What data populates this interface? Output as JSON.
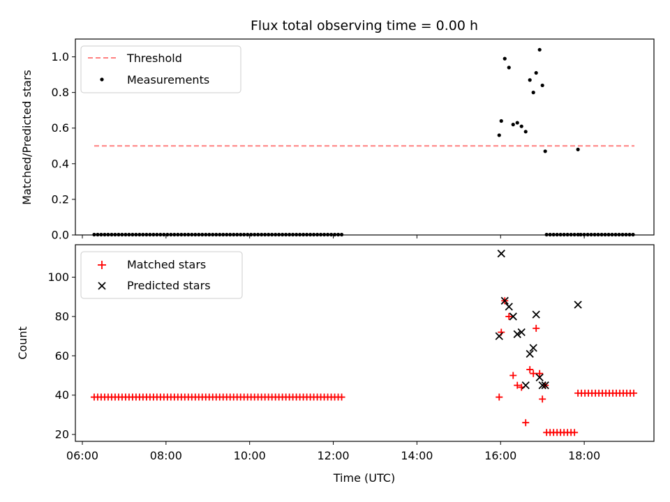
{
  "figure": {
    "title": "Flux total observing time = 0.00 h",
    "xlabel": "Time (UTC)"
  },
  "chart_data": [
    {
      "type": "scatter",
      "ylabel": "Matched/Predicted stars",
      "ylim": [
        0,
        1.1
      ],
      "yticks": [
        0.0,
        0.2,
        0.4,
        0.6,
        0.8,
        1.0
      ],
      "xlim": [
        "05:50",
        "19:40"
      ],
      "legend_position": "upper-left",
      "series": [
        {
          "name": "Threshold",
          "kind": "dashed-line",
          "color": "#ff7f7f",
          "points": [
            [
              "06:17",
              0.5
            ],
            [
              "19:12",
              0.5
            ]
          ]
        },
        {
          "name": "Measurements",
          "kind": "dots",
          "color": "#000000",
          "zero_runs": [
            {
              "start": "06:17",
              "end": "12:12",
              "step_minutes": 5,
              "value": 0
            },
            {
              "start": "17:06",
              "end": "17:51",
              "step_minutes": 5,
              "value": 0
            },
            {
              "start": "17:55",
              "end": "19:12",
              "step_minutes": 5,
              "value": 0
            }
          ],
          "points": [
            [
              "15:58",
              0.56
            ],
            [
              "16:01",
              0.64
            ],
            [
              "16:06",
              0.99
            ],
            [
              "16:12",
              0.94
            ],
            [
              "16:18",
              0.62
            ],
            [
              "16:24",
              0.63
            ],
            [
              "16:30",
              0.61
            ],
            [
              "16:36",
              0.58
            ],
            [
              "16:42",
              0.87
            ],
            [
              "16:47",
              0.8
            ],
            [
              "16:51",
              0.91
            ],
            [
              "16:56",
              1.04
            ],
            [
              "17:00",
              0.84
            ],
            [
              "17:04",
              0.47
            ],
            [
              "17:51",
              0.48
            ]
          ]
        }
      ]
    },
    {
      "type": "scatter",
      "ylabel": "Count",
      "ylim": [
        16.5,
        116.5
      ],
      "yticks": [
        20,
        40,
        60,
        80,
        100
      ],
      "xlim": [
        "05:50",
        "19:40"
      ],
      "xticks": [
        "06:00",
        "08:00",
        "10:00",
        "12:00",
        "14:00",
        "16:00",
        "18:00"
      ],
      "legend_position": "upper-left",
      "series": [
        {
          "name": "Matched stars",
          "marker": "plus",
          "color": "#ff0000",
          "runs": [
            {
              "start": "06:17",
              "end": "12:12",
              "step_minutes": 5,
              "value": 39
            },
            {
              "start": "17:06",
              "end": "17:46",
              "step_minutes": 5,
              "value": 21
            },
            {
              "start": "17:51",
              "end": "19:12",
              "step_minutes": 5,
              "value": 41
            }
          ],
          "points": [
            [
              "15:58",
              39
            ],
            [
              "16:01",
              72
            ],
            [
              "16:06",
              88
            ],
            [
              "16:12",
              80
            ],
            [
              "16:18",
              50
            ],
            [
              "16:24",
              45
            ],
            [
              "16:30",
              44
            ],
            [
              "16:36",
              26
            ],
            [
              "16:42",
              53
            ],
            [
              "16:47",
              51
            ],
            [
              "16:51",
              74
            ],
            [
              "16:56",
              51
            ],
            [
              "17:00",
              38
            ],
            [
              "17:04",
              45
            ]
          ]
        },
        {
          "name": "Predicted stars",
          "marker": "x",
          "color": "#000000",
          "points": [
            [
              "15:58",
              70
            ],
            [
              "16:01",
              112
            ],
            [
              "16:06",
              88
            ],
            [
              "16:12",
              85
            ],
            [
              "16:18",
              80
            ],
            [
              "16:24",
              71
            ],
            [
              "16:30",
              72
            ],
            [
              "16:36",
              45
            ],
            [
              "16:42",
              61
            ],
            [
              "16:47",
              64
            ],
            [
              "16:51",
              81
            ],
            [
              "16:56",
              49
            ],
            [
              "17:00",
              45
            ],
            [
              "17:04",
              45
            ],
            [
              "17:51",
              86
            ]
          ]
        }
      ]
    }
  ]
}
